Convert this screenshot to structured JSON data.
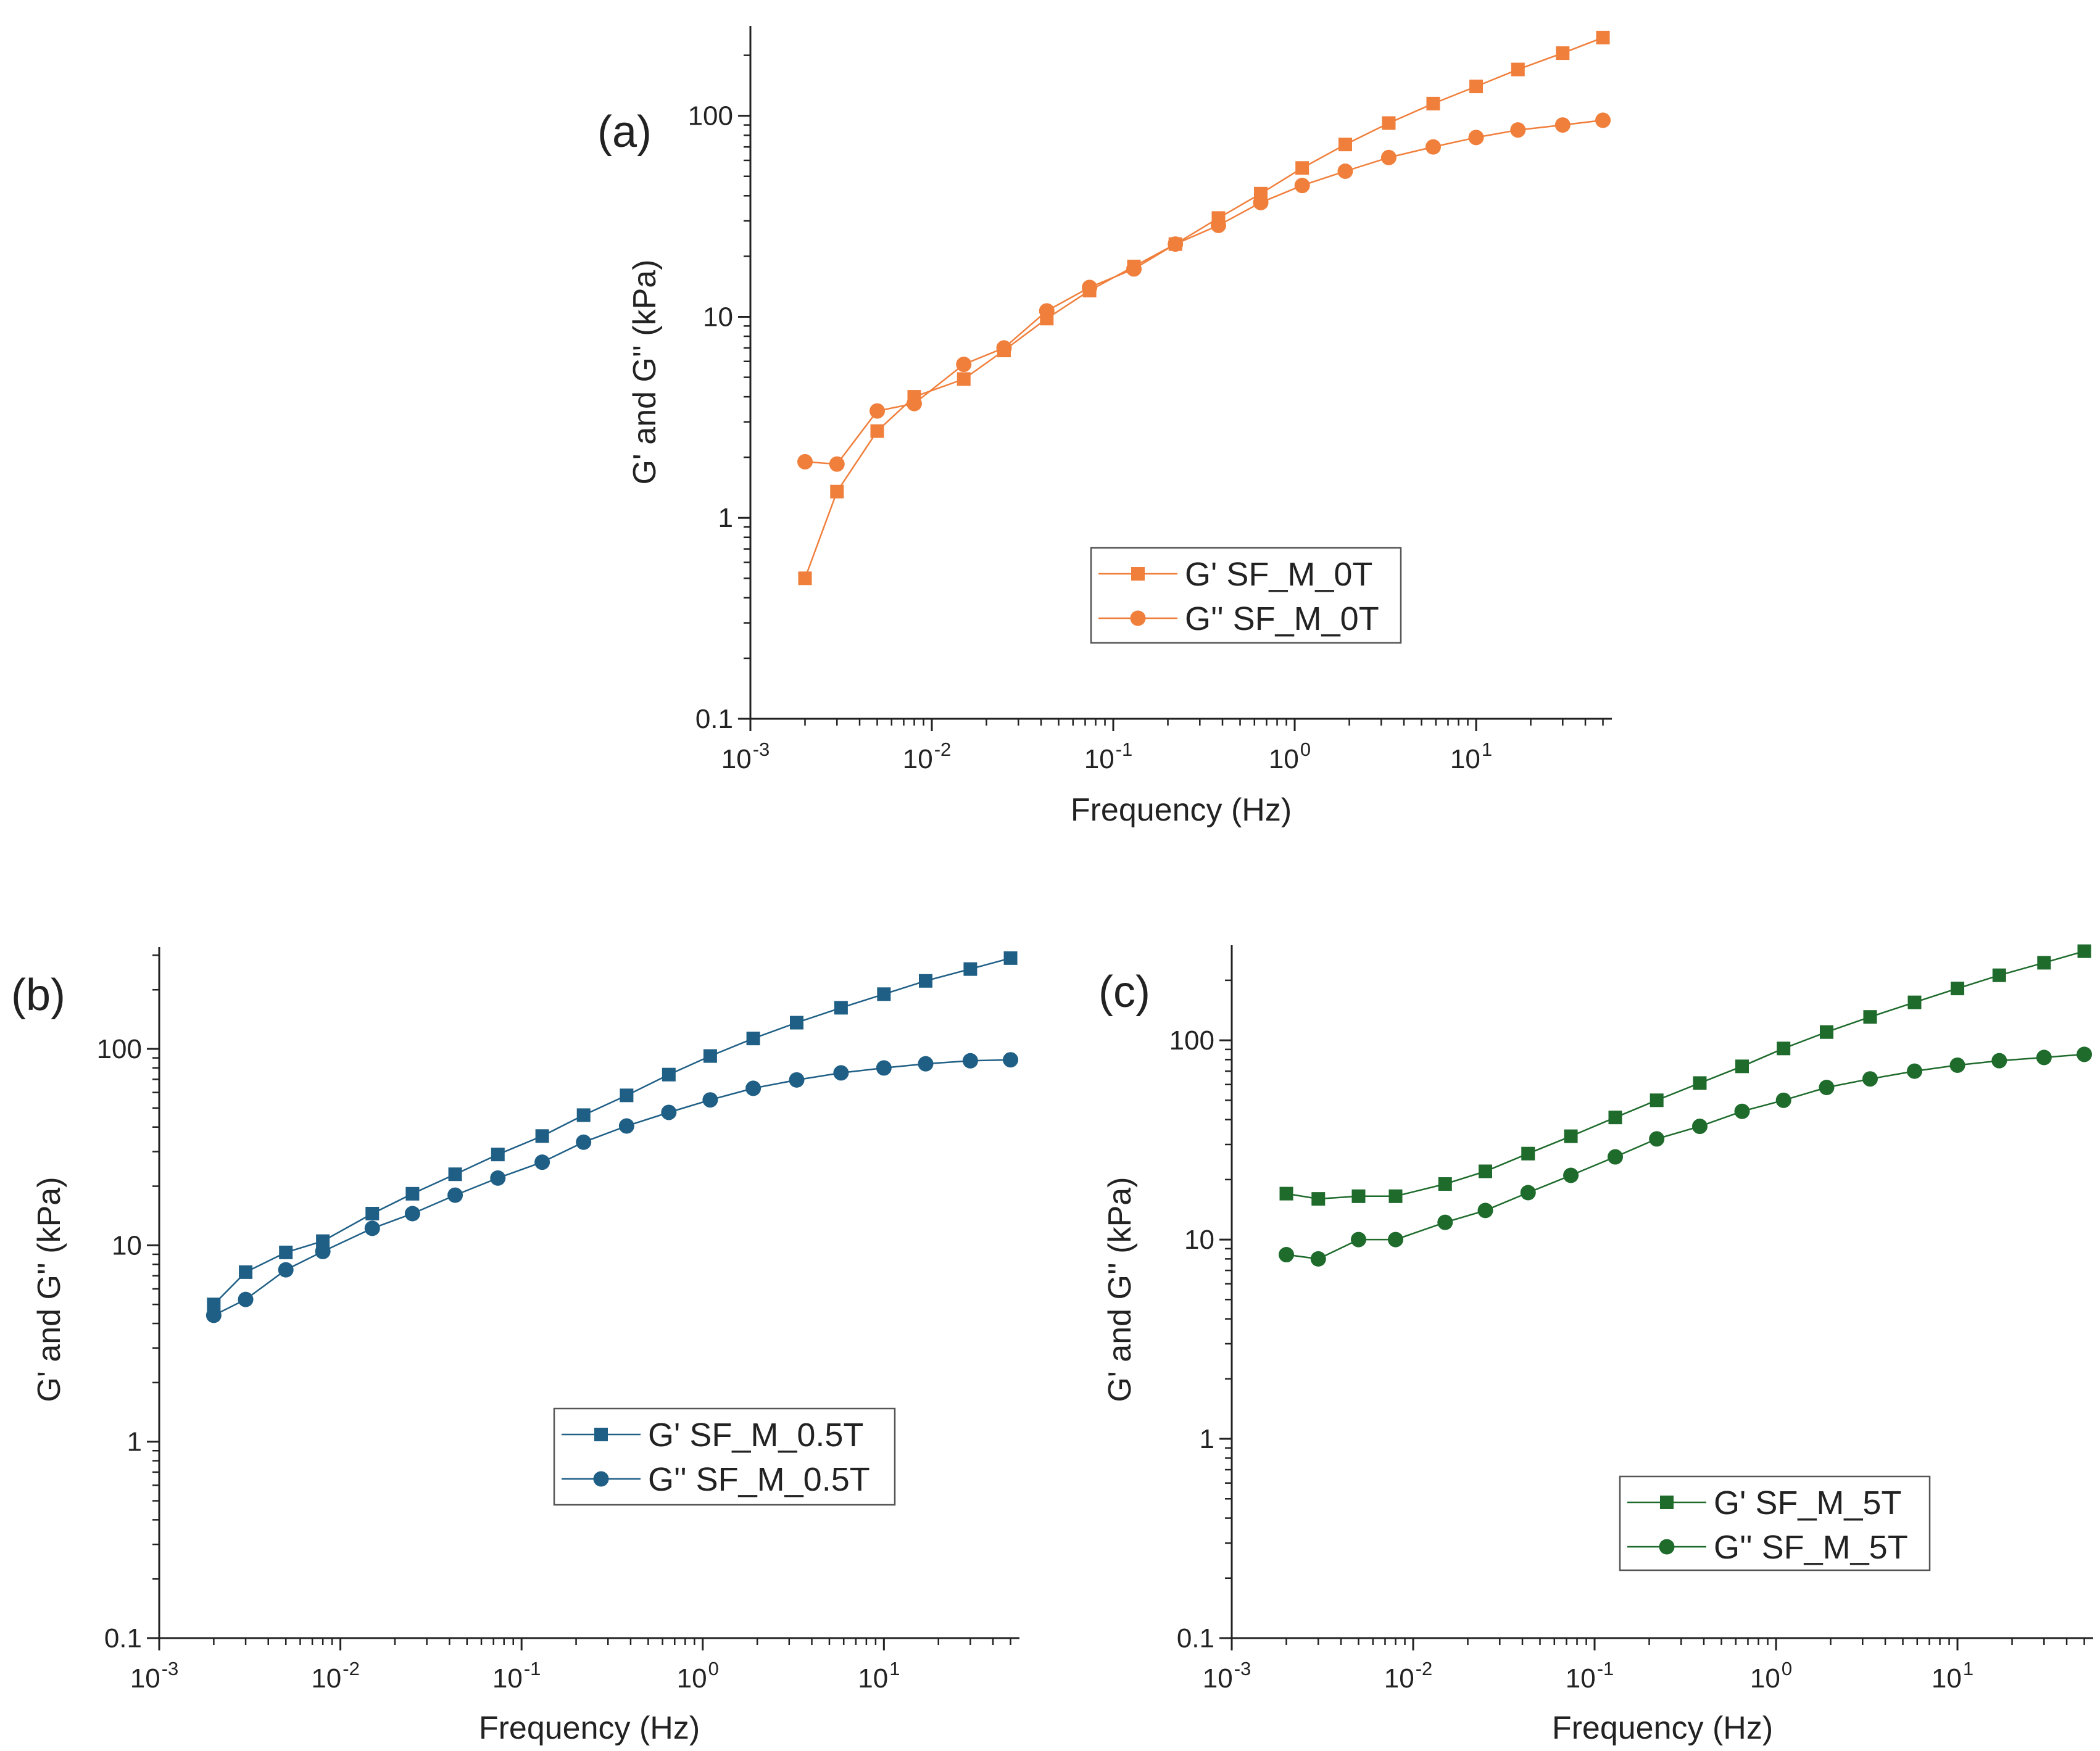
{
  "chart_data": [
    {
      "type": "line",
      "panel_label": "(a)",
      "xscale": "log",
      "yscale": "log",
      "xlabel": "Frequency (Hz)",
      "ylabel": "G' and G'' (kPa)",
      "xlim": [
        0.001,
        56
      ],
      "ylim": [
        0.1,
        280
      ],
      "xticks": [
        {
          "base": "10",
          "exp": "-3"
        },
        {
          "base": "10",
          "exp": "-2"
        },
        {
          "base": "10",
          "exp": "-1"
        },
        {
          "base": "10",
          "exp": "0"
        },
        {
          "base": "10",
          "exp": "1"
        }
      ],
      "xtick_values": [
        0.001,
        0.01,
        0.1,
        1,
        10
      ],
      "yticks": [
        "0.1",
        "1",
        "10",
        "100"
      ],
      "ytick_values": [
        0.1,
        1,
        10,
        100
      ],
      "color": "#f07f3c",
      "x": [
        0.002,
        0.003,
        0.005,
        0.008,
        0.015,
        0.025,
        0.043,
        0.074,
        0.13,
        0.22,
        0.38,
        0.65,
        1.1,
        1.9,
        3.3,
        5.8,
        10,
        17,
        30,
        50
      ],
      "series": [
        {
          "name": "G' SF_M_0T",
          "marker": "square",
          "values": [
            0.5,
            1.35,
            2.7,
            4.0,
            4.9,
            6.8,
            9.8,
            13.5,
            17.8,
            23,
            31,
            41,
            55,
            72,
            92,
            115,
            140,
            170,
            205,
            245
          ]
        },
        {
          "name": "G'' SF_M_0T",
          "marker": "circle",
          "values": [
            1.9,
            1.85,
            3.4,
            3.7,
            5.8,
            7.0,
            10.7,
            14,
            17.3,
            23,
            28.5,
            37,
            45,
            53,
            62,
            70,
            78,
            85,
            90,
            95
          ]
        }
      ]
    },
    {
      "type": "line",
      "panel_label": "(b)",
      "xscale": "log",
      "yscale": "log",
      "xlabel": "Frequency (Hz)",
      "ylabel": "G' and G'' (kPa)",
      "xlim": [
        0.001,
        56
      ],
      "ylim": [
        0.1,
        330
      ],
      "xticks": [
        {
          "base": "10",
          "exp": "-3"
        },
        {
          "base": "10",
          "exp": "-2"
        },
        {
          "base": "10",
          "exp": "-1"
        },
        {
          "base": "10",
          "exp": "0"
        },
        {
          "base": "10",
          "exp": "1"
        }
      ],
      "xtick_values": [
        0.001,
        0.01,
        0.1,
        1,
        10
      ],
      "yticks": [
        "0.1",
        "1",
        "10",
        "100"
      ],
      "ytick_values": [
        0.1,
        1,
        10,
        100
      ],
      "color": "#1f5f86",
      "x": [
        0.002,
        0.003,
        0.005,
        0.008,
        0.015,
        0.025,
        0.043,
        0.074,
        0.13,
        0.22,
        0.38,
        0.65,
        1.1,
        1.9,
        3.3,
        5.8,
        10,
        17,
        30,
        50
      ],
      "series": [
        {
          "name": "G' SF_M_0.5T",
          "marker": "square",
          "values": [
            5.0,
            7.3,
            9.2,
            10.5,
            14.5,
            18.3,
            23,
            29,
            36,
            46,
            58,
            74,
            92,
            113,
            136,
            162,
            190,
            222,
            255,
            290
          ]
        },
        {
          "name": "G'' SF_M_0.5T",
          "marker": "circle",
          "values": [
            4.4,
            5.3,
            7.5,
            9.3,
            12.2,
            14.5,
            18,
            22,
            26.5,
            33.5,
            40.5,
            47.5,
            55,
            63,
            69.5,
            75.5,
            80,
            84,
            87,
            88
          ]
        }
      ]
    },
    {
      "type": "line",
      "panel_label": "(c)",
      "xscale": "log",
      "yscale": "log",
      "xlabel": "Frequency (Hz)",
      "ylabel": "G' and G'' (kPa)",
      "xlim": [
        0.001,
        56
      ],
      "ylim": [
        0.1,
        300
      ],
      "xticks": [
        {
          "base": "10",
          "exp": "-3"
        },
        {
          "base": "10",
          "exp": "-2"
        },
        {
          "base": "10",
          "exp": "-1"
        },
        {
          "base": "10",
          "exp": "0"
        },
        {
          "base": "10",
          "exp": "1"
        }
      ],
      "xtick_values": [
        0.001,
        0.01,
        0.1,
        1,
        10
      ],
      "yticks": [
        "0.1",
        "1",
        "10",
        "100"
      ],
      "ytick_values": [
        0.1,
        1,
        10,
        100
      ],
      "color": "#1e6b2c",
      "x": [
        0.002,
        0.003,
        0.005,
        0.008,
        0.015,
        0.025,
        0.043,
        0.074,
        0.13,
        0.22,
        0.38,
        0.65,
        1.1,
        1.9,
        3.3,
        5.8,
        10,
        17,
        30,
        50
      ],
      "series": [
        {
          "name": "G' SF_M_5T",
          "marker": "square",
          "values": [
            17,
            16,
            16.5,
            16.5,
            19,
            22,
            27,
            33,
            41,
            50,
            61,
            74,
            91,
            110,
            131,
            155,
            182,
            212,
            245,
            280
          ]
        },
        {
          "name": "G'' SF_M_5T",
          "marker": "circle",
          "values": [
            8.4,
            8.0,
            10,
            10,
            12.2,
            14,
            17.2,
            21,
            26,
            32,
            37,
            44,
            50,
            58,
            64,
            70,
            75,
            79,
            82,
            85
          ]
        }
      ]
    }
  ]
}
